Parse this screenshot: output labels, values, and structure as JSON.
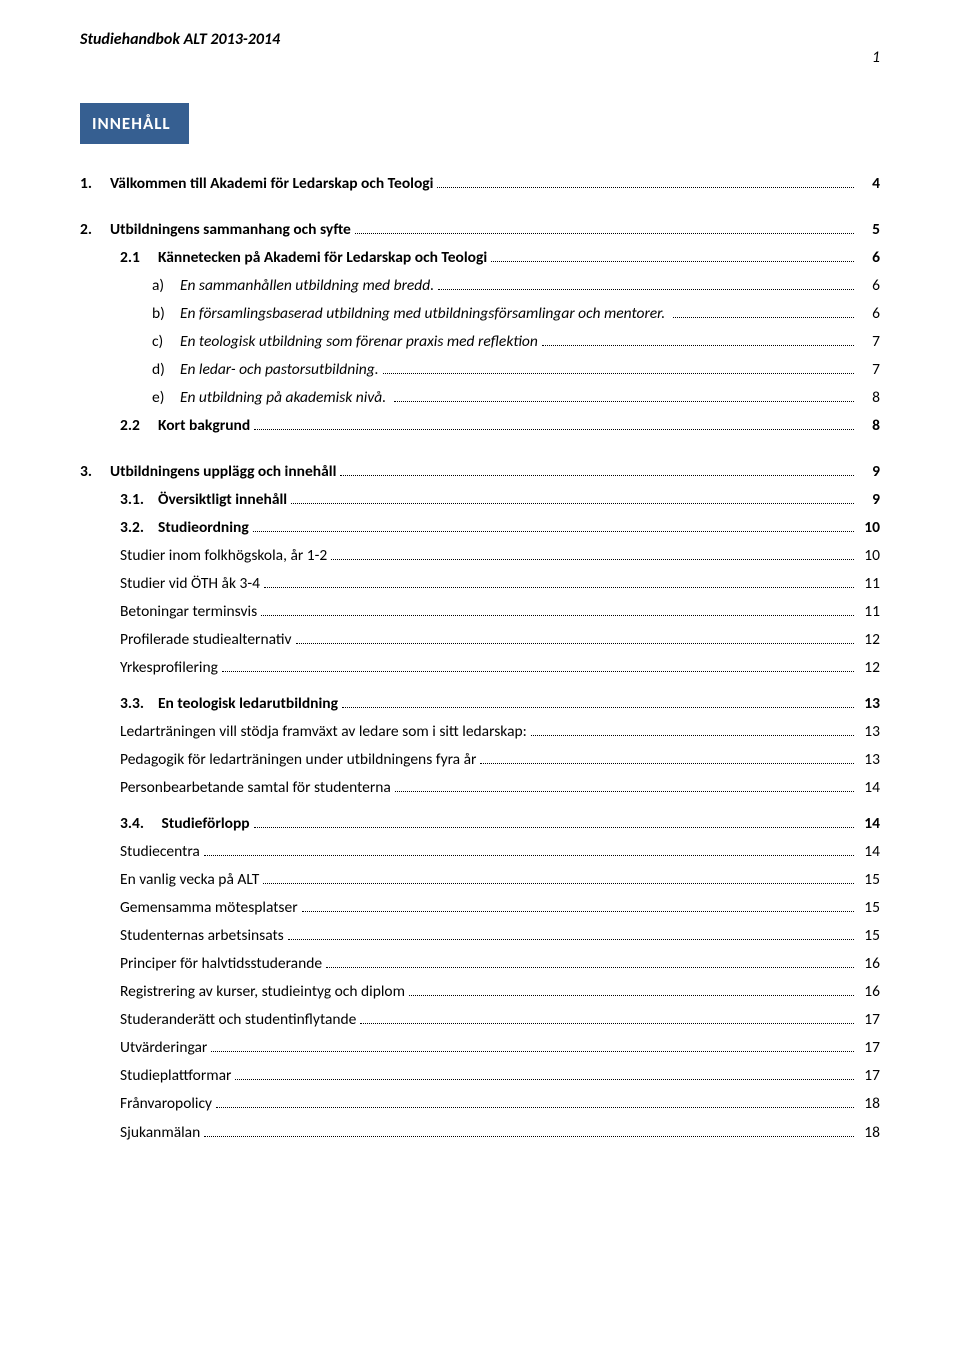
{
  "doc_header": "Studiehandbok ALT 2013-2014",
  "page_number": "1",
  "title": "INNEHÅLL",
  "colors": {
    "title_bg": "#365f91",
    "title_fg": "#ffffff",
    "text": "#000000",
    "bg": "#ffffff"
  },
  "toc": [
    {
      "level": 1,
      "num": "1.",
      "label": "Välkommen till Akademi för Ledarskap och Teologi",
      "page": "4",
      "bold": true
    },
    {
      "level": 1,
      "num": "2.",
      "label": "Utbildningens sammanhang och syfte",
      "page": "5",
      "bold": true,
      "gap_before": true
    },
    {
      "level": 2,
      "num": "2.1",
      "label": "Kännetecken på Akademi för Ledarskap och Teologi",
      "page": "6",
      "bold": true
    },
    {
      "level": 3,
      "num": "a)",
      "label": "En sammanhållen utbildning med bredd.",
      "page": "6",
      "italic": true
    },
    {
      "level": 3,
      "num": "b)",
      "label": "En församlingsbaserad utbildning med utbildningsförsamlingar och mentorer. ",
      "page": "6",
      "italic": true
    },
    {
      "level": 3,
      "num": "c)",
      "label": "En teologisk utbildning som förenar praxis med reflektion",
      "page": "7",
      "italic": true
    },
    {
      "level": 3,
      "num": "d)",
      "label": "En ledar- och pastorsutbildning.",
      "page": "7",
      "italic": true
    },
    {
      "level": 3,
      "num": "e)",
      "label": "En utbildning på akademisk nivå. ",
      "page": "8",
      "italic": true
    },
    {
      "level": 2,
      "num": "2.2",
      "label": "Kort bakgrund",
      "page": "8",
      "bold": true
    },
    {
      "level": 1,
      "num": "3.",
      "label": "Utbildningens upplägg och innehåll",
      "page": "9",
      "bold": true,
      "gap_before": true
    },
    {
      "level": 2,
      "num": "3.1.",
      "label": "Översiktligt innehåll",
      "page": "9",
      "bold": true
    },
    {
      "level": 2,
      "num": "3.2.",
      "label": "Studieordning",
      "page": "10",
      "bold": true
    },
    {
      "level": "3b",
      "label": "Studier inom folkhögskola, år 1-2",
      "page": "10"
    },
    {
      "level": "3b",
      "label": "Studier vid ÖTH åk 3-4",
      "page": "11"
    },
    {
      "level": "3b",
      "label": "Betoningar terminsvis",
      "page": "11"
    },
    {
      "level": "3b",
      "label": "Profilerade studiealternativ",
      "page": "12"
    },
    {
      "level": "3b",
      "label": "Yrkesprofilering",
      "page": "12"
    },
    {
      "level": 2,
      "num": "3.3.",
      "label": "En teologisk ledarutbildning",
      "page": "13",
      "bold": true,
      "gap_before_sm": true
    },
    {
      "level": "3b",
      "label": "Ledarträningen vill stödja framväxt av ledare som i sitt ledarskap:",
      "page": "13"
    },
    {
      "level": "3b",
      "label": "Pedagogik för ledarträningen under utbildningens fyra år",
      "page": "13"
    },
    {
      "level": "3b",
      "label": "Personbearbetande samtal för studenterna",
      "page": "14"
    },
    {
      "level": 2,
      "num": "3.4.",
      "label": " Studieförlopp",
      "page": "14",
      "bold": true,
      "gap_before_sm": true
    },
    {
      "level": "3b",
      "label": "Studiecentra",
      "page": "14"
    },
    {
      "level": "3b",
      "label": "En vanlig vecka på ALT",
      "page": "15"
    },
    {
      "level": "3b",
      "label": "Gemensamma mötesplatser",
      "page": "15"
    },
    {
      "level": "3b",
      "label": "Studenternas arbetsinsats",
      "page": "15"
    },
    {
      "level": "3b",
      "label": "Principer för halvtidsstuderande",
      "page": "16"
    },
    {
      "level": "3b",
      "label": "Registrering av kurser, studieintyg och diplom",
      "page": "16"
    },
    {
      "level": "3b",
      "label": "Studeranderätt och studentinflytande",
      "page": "17"
    },
    {
      "level": "3b",
      "label": "Utvärderingar",
      "page": "17"
    },
    {
      "level": "3b",
      "label": "Studieplattformar",
      "page": "17"
    },
    {
      "level": "3b",
      "label": "Frånvaropolicy",
      "page": "18"
    },
    {
      "level": "3b",
      "label": "Sjukanmälan",
      "page": "18"
    }
  ]
}
